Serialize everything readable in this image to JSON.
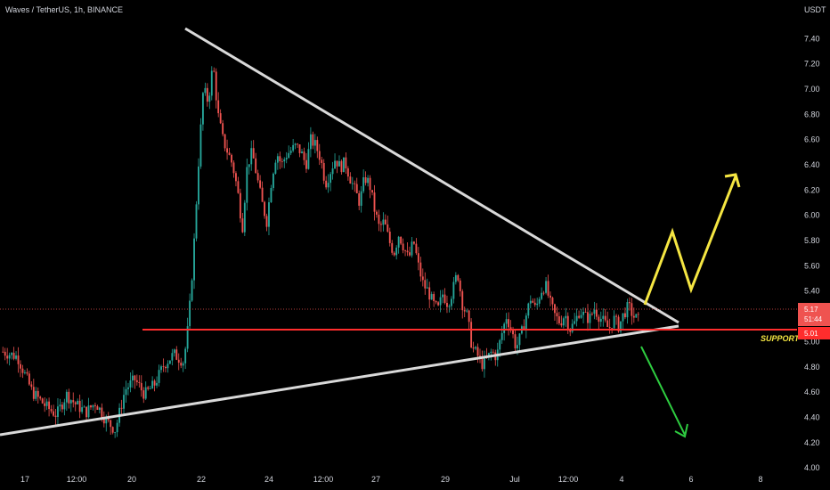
{
  "header": {
    "symbol_title": "Waves / TetherUS, 1h, BINANCE",
    "currency": "USDT"
  },
  "chart_data": {
    "type": "candlestick",
    "title": "Waves / TetherUS, 1h, BINANCE",
    "ylabel": "USDT",
    "ylim": [
      3.98,
      7.55
    ],
    "y_ticks": [
      "7.40",
      "7.20",
      "7.00",
      "6.80",
      "6.60",
      "6.40",
      "6.20",
      "6.00",
      "5.80",
      "5.60",
      "5.40",
      "5.20",
      "5.00",
      "4.80",
      "4.60",
      "4.40",
      "4.20",
      "4.00"
    ],
    "x_ticks": [
      "17",
      "12:00",
      "20",
      "22",
      "24",
      "12:00",
      "27",
      "29",
      "Jul",
      "12:00",
      "4",
      "6",
      "8"
    ],
    "price_path": [
      [
        0,
        4.92
      ],
      [
        3,
        4.88
      ],
      [
        6,
        4.6
      ],
      [
        9,
        4.48
      ],
      [
        11,
        4.42
      ],
      [
        13,
        4.58
      ],
      [
        15,
        4.5
      ],
      [
        17,
        4.44
      ],
      [
        19,
        4.52
      ],
      [
        21,
        4.38
      ],
      [
        23,
        4.3
      ],
      [
        25,
        4.62
      ],
      [
        27,
        4.7
      ],
      [
        29,
        4.58
      ],
      [
        31,
        4.66
      ],
      [
        33,
        4.82
      ],
      [
        35,
        4.9
      ],
      [
        37,
        4.84
      ],
      [
        38,
        5.15
      ],
      [
        39,
        5.7
      ],
      [
        40,
        6.4
      ],
      [
        41,
        7.0
      ],
      [
        42,
        6.9
      ],
      [
        43,
        7.2
      ],
      [
        44,
        6.8
      ],
      [
        45,
        6.6
      ],
      [
        46,
        6.5
      ],
      [
        47,
        6.4
      ],
      [
        48,
        6.2
      ],
      [
        49,
        5.9
      ],
      [
        50,
        6.4
      ],
      [
        51,
        6.5
      ],
      [
        52,
        6.3
      ],
      [
        53,
        6.1
      ],
      [
        54,
        5.95
      ],
      [
        55,
        6.3
      ],
      [
        56,
        6.5
      ],
      [
        57,
        6.4
      ],
      [
        58,
        6.48
      ],
      [
        60,
        6.55
      ],
      [
        61,
        6.5
      ],
      [
        62,
        6.4
      ],
      [
        63,
        6.6
      ],
      [
        64,
        6.55
      ],
      [
        65,
        6.45
      ],
      [
        66,
        6.25
      ],
      [
        67,
        6.35
      ],
      [
        68,
        6.45
      ],
      [
        69,
        6.38
      ],
      [
        70,
        6.42
      ],
      [
        71,
        6.3
      ],
      [
        72,
        6.2
      ],
      [
        73,
        6.1
      ],
      [
        74,
        6.3
      ],
      [
        75,
        6.25
      ],
      [
        76,
        6.05
      ],
      [
        77,
        5.9
      ],
      [
        78,
        5.95
      ],
      [
        79,
        5.8
      ],
      [
        80,
        5.7
      ],
      [
        81,
        5.85
      ],
      [
        82,
        5.75
      ],
      [
        83,
        5.65
      ],
      [
        84,
        5.8
      ],
      [
        85,
        5.6
      ],
      [
        86,
        5.45
      ],
      [
        87,
        5.4
      ],
      [
        88,
        5.3
      ],
      [
        89,
        5.25
      ],
      [
        90,
        5.38
      ],
      [
        91,
        5.3
      ],
      [
        92,
        5.4
      ],
      [
        93,
        5.55
      ],
      [
        94,
        5.3
      ],
      [
        95,
        5.2
      ],
      [
        96,
        4.95
      ],
      [
        97,
        4.9
      ],
      [
        98,
        4.82
      ],
      [
        99,
        4.86
      ],
      [
        100,
        4.92
      ],
      [
        101,
        4.88
      ],
      [
        102,
        5.05
      ],
      [
        103,
        5.2
      ],
      [
        104,
        5.1
      ],
      [
        105,
        4.95
      ],
      [
        106,
        5.05
      ],
      [
        107,
        5.2
      ],
      [
        108,
        5.35
      ],
      [
        109,
        5.25
      ],
      [
        110,
        5.4
      ],
      [
        111,
        5.45
      ],
      [
        112,
        5.3
      ],
      [
        113,
        5.2
      ],
      [
        114,
        5.15
      ],
      [
        115,
        5.22
      ],
      [
        116,
        5.1
      ],
      [
        117,
        5.15
      ],
      [
        118,
        5.25
      ],
      [
        119,
        5.2
      ],
      [
        120,
        5.18
      ],
      [
        121,
        5.26
      ],
      [
        122,
        5.2
      ],
      [
        123,
        5.15
      ],
      [
        124,
        5.1
      ],
      [
        125,
        5.18
      ],
      [
        126,
        5.12
      ],
      [
        127,
        5.22
      ],
      [
        128,
        5.28
      ],
      [
        129,
        5.2
      ],
      [
        130,
        5.17
      ]
    ],
    "current_price": "5.17",
    "countdown": "51:44",
    "support_price": "5.01",
    "support_label": "SUPPORT"
  },
  "colors": {
    "background": "#000000",
    "bull": "#26a69a",
    "bear": "#ef5350",
    "trendline": "#d9d9d9",
    "support_line": "#ff2d2d",
    "up_arrow": "#f5e642",
    "down_arrow": "#2ecc40",
    "text": "#d1d4dc"
  }
}
